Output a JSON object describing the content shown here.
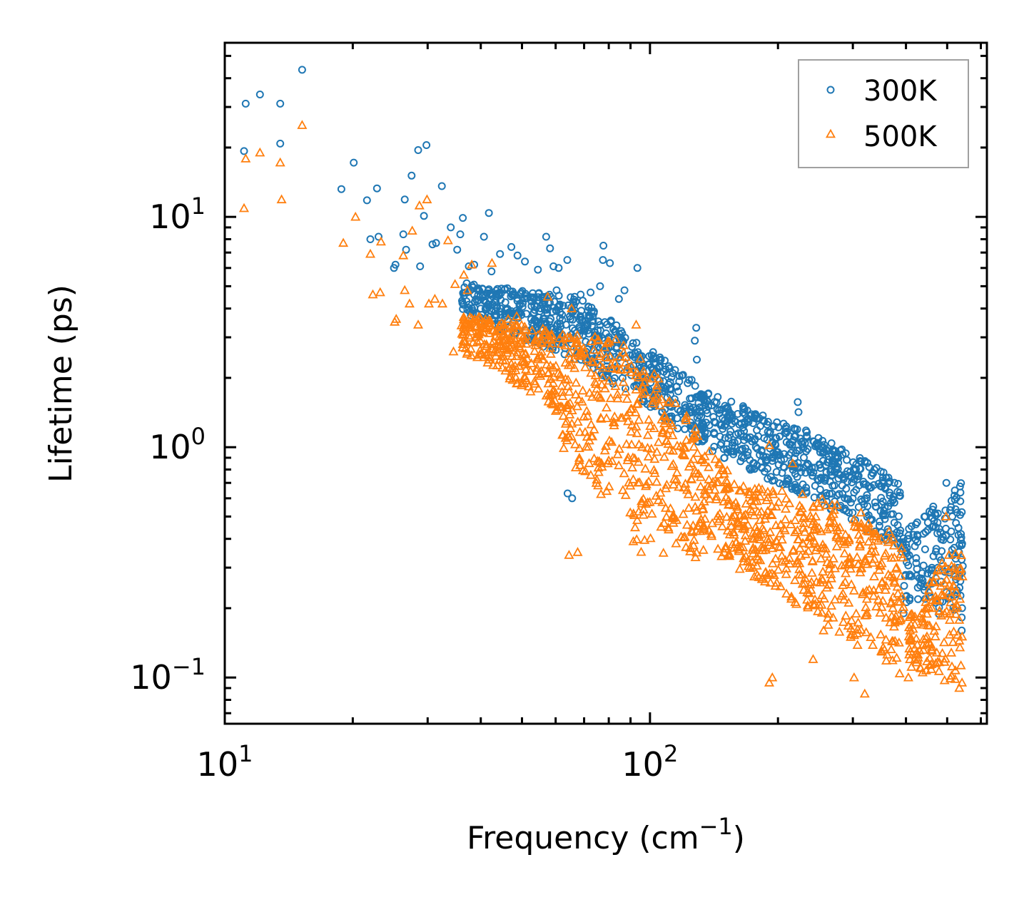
{
  "chart_data": {
    "type": "scatter",
    "title": "",
    "xlabel": "Frequency (cm",
    "xlabel_sup": "−1",
    "xlabel_suffix": ")",
    "ylabel": "Lifetime (ps)",
    "xscale": "log",
    "yscale": "log",
    "xlim": [
      10,
      620
    ],
    "ylim": [
      0.063,
      57
    ],
    "x_ticks": [
      {
        "value": 10,
        "base": "10",
        "exp": "1"
      },
      {
        "value": 100,
        "base": "10",
        "exp": "2"
      }
    ],
    "y_ticks": [
      {
        "value": 0.1,
        "base": "10",
        "exp": "−1"
      },
      {
        "value": 1,
        "base": "10",
        "exp": "0"
      },
      {
        "value": 10,
        "base": "10",
        "exp": "1"
      }
    ],
    "legend_position": "top-right",
    "series": [
      {
        "name": "300K",
        "marker": "circle",
        "color": "#1f77b4",
        "points": [
          [
            11.2,
            31
          ],
          [
            12.1,
            34
          ],
          [
            13.5,
            31
          ],
          [
            15.2,
            43.5
          ],
          [
            11.1,
            19.3
          ],
          [
            13.5,
            20.8
          ],
          [
            18.8,
            13.2
          ],
          [
            20.1,
            17.2
          ],
          [
            21.6,
            11.8
          ],
          [
            22.8,
            13.3
          ],
          [
            22,
            8
          ],
          [
            23,
            8.2
          ],
          [
            25,
            6
          ],
          [
            25.2,
            6.2
          ],
          [
            26.3,
            8.4
          ],
          [
            26.7,
            7.2
          ],
          [
            27.5,
            15.1
          ],
          [
            28.5,
            19.5
          ],
          [
            29.8,
            20.5
          ],
          [
            26.5,
            11.9
          ],
          [
            28.8,
            6.1
          ],
          [
            29.4,
            10.1
          ],
          [
            30.8,
            7.6
          ],
          [
            31.4,
            7.7
          ],
          [
            32.4,
            13.6
          ],
          [
            34,
            9
          ],
          [
            35.2,
            7.2
          ],
          [
            35.8,
            8.4
          ],
          [
            36.3,
            9.9
          ],
          [
            37.5,
            6.1
          ],
          [
            38.6,
            6.2
          ],
          [
            40.7,
            8.2
          ],
          [
            41.8,
            10.4
          ],
          [
            42.4,
            5.8
          ],
          [
            44.4,
            6.9
          ],
          [
            46.2,
            4.9
          ],
          [
            47.2,
            7.4
          ],
          [
            48.8,
            6.8
          ],
          [
            50.8,
            6.4
          ],
          [
            54.5,
            5.9
          ],
          [
            57,
            8.2
          ],
          [
            58.2,
            7.3
          ],
          [
            59.3,
            6.1
          ],
          [
            61,
            6
          ],
          [
            63.9,
            6.5
          ],
          [
            68.7,
            4.6
          ],
          [
            77.7,
            7.5
          ],
          [
            77.5,
            6.5
          ],
          [
            80.5,
            6.3
          ],
          [
            87.1,
            4.8
          ],
          [
            93.4,
            6
          ],
          [
            60.3,
            4.8
          ],
          [
            66.5,
            4.5
          ],
          [
            72.5,
            4.7
          ],
          [
            76.3,
            5
          ],
          [
            84.5,
            4.4
          ],
          [
            64,
            0.63
          ],
          [
            65.6,
            0.6
          ],
          [
            128.5,
            3.3
          ],
          [
            127.5,
            2.9
          ],
          [
            128.9,
            2.4
          ],
          [
            222.6,
            1.57
          ],
          [
            223.5,
            1.42
          ],
          [
            200.5,
            1.22
          ],
          [
            254.7,
            0.99
          ],
          [
            268.2,
            0.93
          ],
          [
            290.2,
            0.88
          ],
          [
            300.5,
            0.86
          ],
          [
            408.2,
            0.28
          ],
          [
            430,
            0.27
          ],
          [
            460.8,
            0.45
          ],
          [
            475.6,
            0.3
          ],
          [
            497.8,
            0.7
          ],
          [
            528,
            0.52
          ],
          [
            533,
            0.35
          ],
          [
            542,
            0.2
          ],
          [
            541,
            0.16
          ],
          [
            395,
            0.19
          ],
          [
            396,
            0.25
          ],
          [
            405,
            0.4
          ],
          [
            450,
            0.25
          ],
          [
            382,
            0.38
          ]
        ],
        "band": [
          {
            "x": [
              36,
              70
            ],
            "y_low_start": 3.8,
            "y_low_end": 2.3,
            "y_high_start": 5.2,
            "y_high_end": 4.4
          },
          {
            "x": [
              70,
              140
            ],
            "y_low_start": 2.3,
            "y_low_end": 0.95,
            "y_high_start": 4.4,
            "y_high_end": 1.7
          },
          {
            "x": [
              140,
              260
            ],
            "y_low_start": 0.95,
            "y_low_end": 0.55,
            "y_high_start": 1.7,
            "y_high_end": 1.1
          },
          {
            "x": [
              260,
              390
            ],
            "y_low_start": 0.55,
            "y_low_end": 0.35,
            "y_high_start": 1.1,
            "y_high_end": 0.7
          },
          {
            "x": [
              390,
              545
            ],
            "y_low_start": 0.2,
            "y_low_end": 0.18,
            "y_high_start": 0.42,
            "y_high_end": 0.72
          }
        ]
      },
      {
        "name": "500K",
        "marker": "triangle",
        "color": "#ff7f0e",
        "points": [
          [
            15.2,
            25
          ],
          [
            11.2,
            17.9
          ],
          [
            12.1,
            19
          ],
          [
            13.5,
            17.2
          ],
          [
            11.1,
            10.9
          ],
          [
            13.6,
            11.9
          ],
          [
            19,
            7.7
          ],
          [
            20.3,
            10
          ],
          [
            22,
            6.9
          ],
          [
            23.3,
            7.8
          ],
          [
            22.3,
            4.6
          ],
          [
            23.2,
            4.7
          ],
          [
            25.1,
            3.5
          ],
          [
            25.3,
            3.6
          ],
          [
            26.5,
            4.8
          ],
          [
            27.2,
            4.2
          ],
          [
            27.6,
            8.7
          ],
          [
            28.7,
            11.2
          ],
          [
            29.9,
            11.9
          ],
          [
            26.3,
            6.8
          ],
          [
            28.5,
            3.4
          ],
          [
            30.2,
            4.2
          ],
          [
            31.2,
            4.4
          ],
          [
            32.5,
            4.2
          ],
          [
            33.5,
            7.9
          ],
          [
            34.8,
            5.1
          ],
          [
            36.5,
            5.6
          ],
          [
            37.2,
            4.8
          ],
          [
            38.1,
            6.2
          ],
          [
            34.5,
            2.6
          ],
          [
            36.3,
            2.8
          ],
          [
            38,
            2.5
          ],
          [
            41.8,
            2.4
          ],
          [
            42.5,
            6.3
          ],
          [
            45.2,
            3.3
          ],
          [
            46.4,
            3.6
          ],
          [
            48.6,
            3.7
          ],
          [
            55,
            2.5
          ],
          [
            57.5,
            4.5
          ],
          [
            56.9,
            3.2
          ],
          [
            65.4,
            4
          ],
          [
            72.7,
            2.1
          ],
          [
            64.5,
            0.34
          ],
          [
            67.6,
            0.35
          ],
          [
            92.8,
            3.4
          ],
          [
            96,
            1.7
          ],
          [
            108.8,
            1.3
          ],
          [
            126.8,
            1.1
          ],
          [
            190.8,
            1.02
          ],
          [
            216.5,
            0.85
          ],
          [
            230.3,
            0.5
          ],
          [
            250,
            0.55
          ],
          [
            313.5,
            0.52
          ],
          [
            328.5,
            0.43
          ],
          [
            349.8,
            0.4
          ],
          [
            365,
            0.43
          ],
          [
            405.2,
            0.1
          ],
          [
            420,
            0.12
          ],
          [
            460,
            0.2
          ],
          [
            497,
            0.5
          ],
          [
            520,
            0.3
          ],
          [
            533.8,
            0.09
          ],
          [
            541.8,
            0.095
          ],
          [
            190.8,
            0.095
          ],
          [
            194,
            0.1
          ],
          [
            320,
            0.085
          ],
          [
            302,
            0.1
          ],
          [
            350,
            0.13
          ],
          [
            242,
            0.12
          ],
          [
            256,
            0.16
          ]
        ],
        "band": [
          {
            "x": [
              36,
              60
            ],
            "y_low_start": 2.6,
            "y_low_end": 1.5,
            "y_high_start": 3.8,
            "y_high_end": 3.2
          },
          {
            "x": [
              60,
              90
            ],
            "y_low_start": 1.0,
            "y_low_end": 0.45,
            "y_high_start": 3.2,
            "y_high_end": 2.9
          },
          {
            "x": [
              90,
              160
            ],
            "y_low_start": 0.35,
            "y_low_end": 0.32,
            "y_high_start": 2.9,
            "y_high_end": 0.7
          },
          {
            "x": [
              160,
              260
            ],
            "y_low_start": 0.3,
            "y_low_end": 0.17,
            "y_high_start": 0.7,
            "y_high_end": 0.6
          },
          {
            "x": [
              260,
              395
            ],
            "y_low_start": 0.17,
            "y_low_end": 0.1,
            "y_high_start": 0.6,
            "y_high_end": 0.38
          },
          {
            "x": [
              405,
              545
            ],
            "y_low_start": 0.11,
            "y_low_end": 0.09,
            "y_high_start": 0.18,
            "y_high_end": 0.45
          }
        ]
      }
    ]
  }
}
